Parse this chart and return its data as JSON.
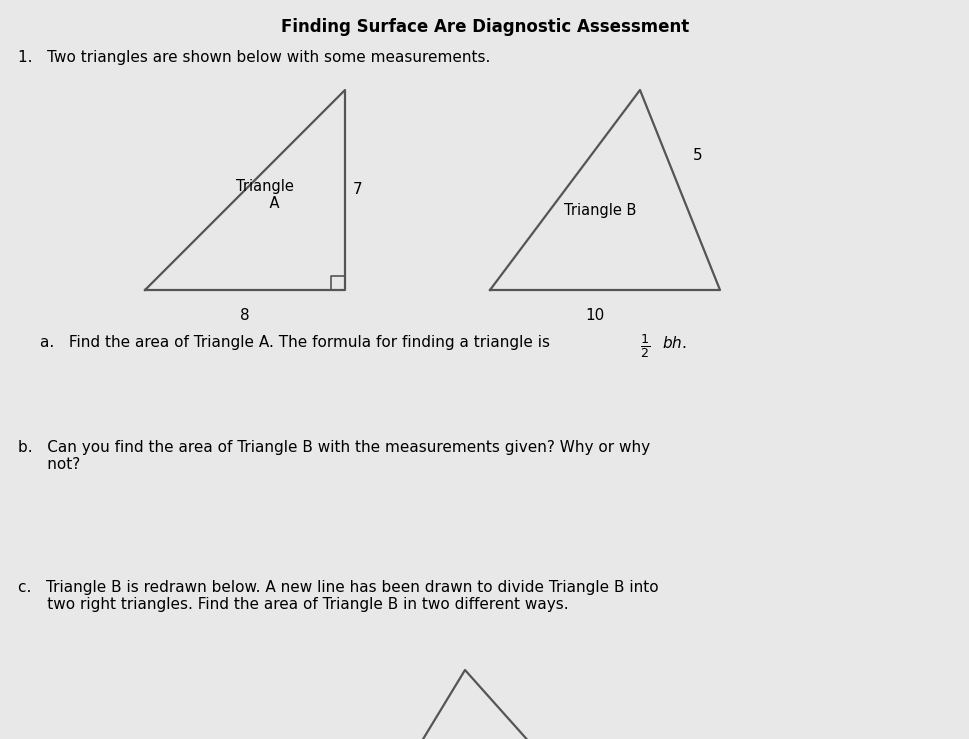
{
  "title": "Finding Surface Are Diagnostic Assessment",
  "title_fontsize": 12,
  "title_fontweight": "bold",
  "background_color": "#e8e8e8",
  "text_color": "#000000",
  "question1_text": "1.   Two triangles are shown below with some measurements.",
  "question_b_text": "b.   Can you find the area of Triangle B with the measurements given? Why or why\n      not?",
  "question_c_text": "c.   Triangle B is redrawn below. A new line has been drawn to divide Triangle B into\n      two right triangles. Find the area of Triangle B in two different ways.",
  "line_color": "#555555",
  "line_width": 1.6
}
